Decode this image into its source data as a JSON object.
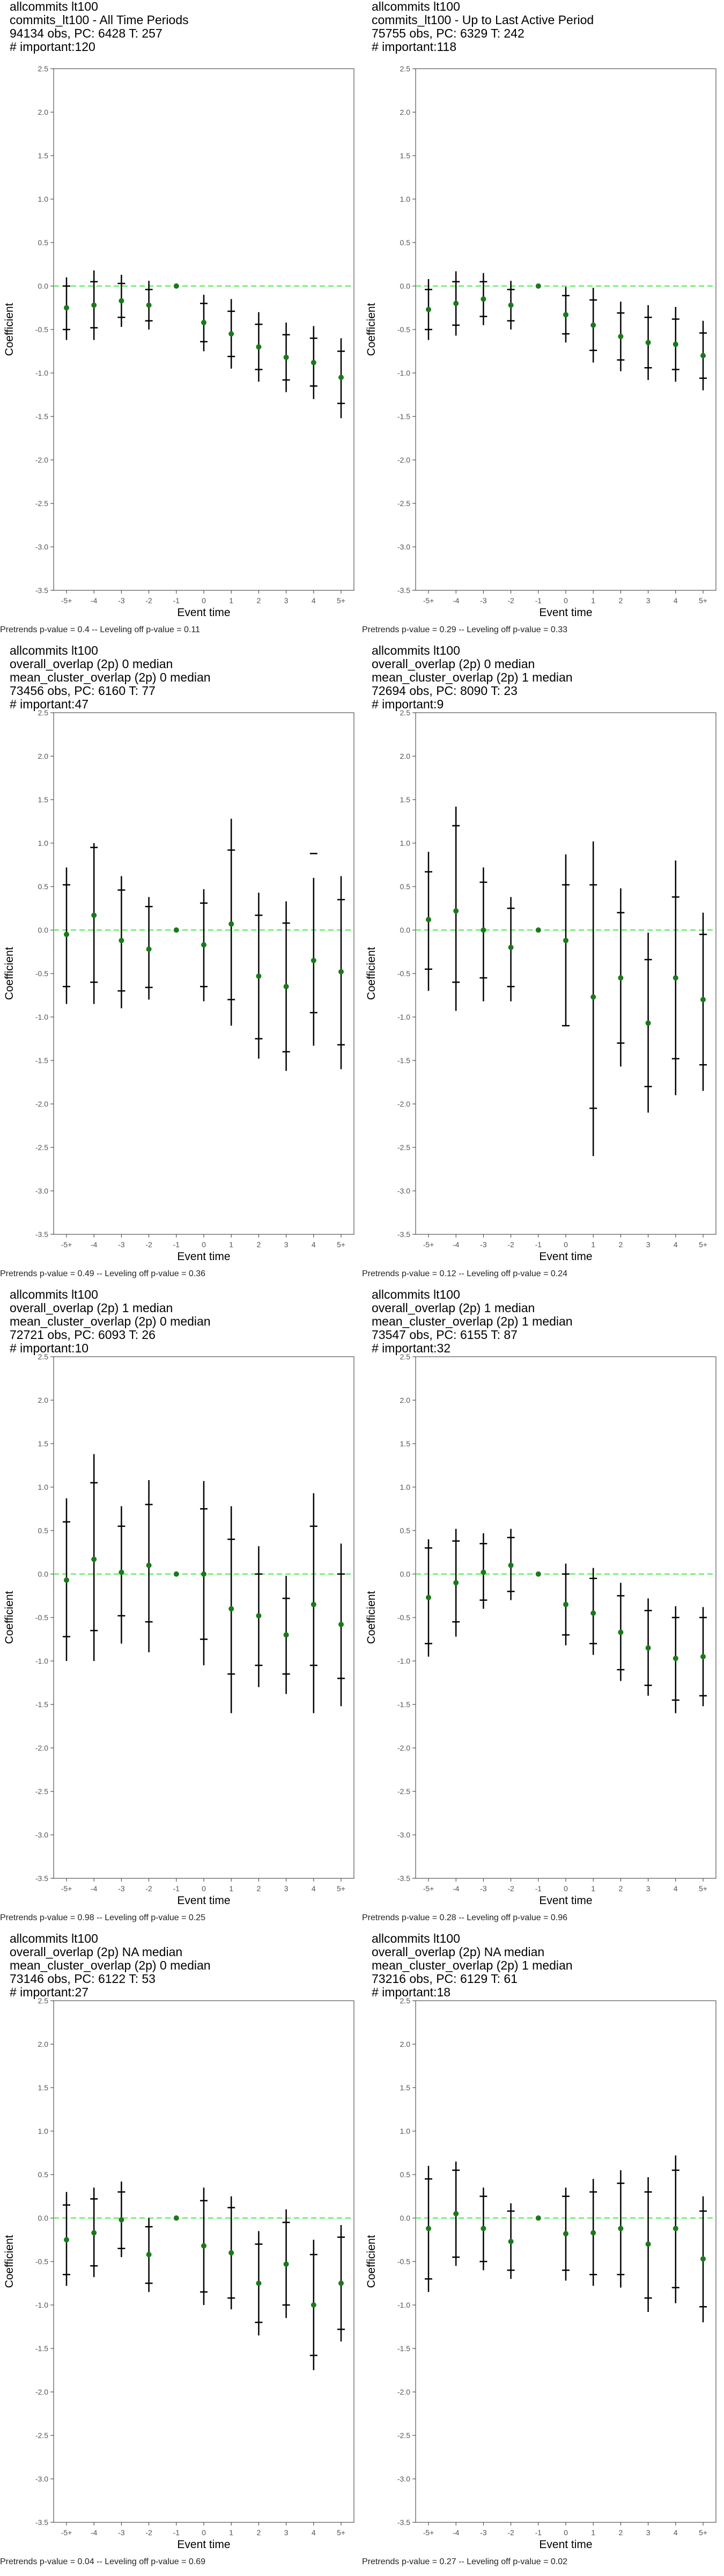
{
  "panel_header_common": "allcommits lt100",
  "axis": {
    "xlabel": "Event time",
    "ylabel": "Coefficient",
    "x_ticks": [
      "-5+",
      "-4",
      "-3",
      "-2",
      "-1",
      "0",
      "1",
      "2",
      "3",
      "4",
      "5+"
    ],
    "y_ticks": [
      "2.5",
      "2.0",
      "1.5",
      "1.0",
      "0.5",
      "0.0",
      "-0.5",
      "-1.0",
      "-1.5",
      "-2.0",
      "-2.5",
      "-3.0",
      "-3.5"
    ],
    "ylim": [
      -3.5,
      2.5
    ]
  },
  "colors": {
    "point": "#1a7a1a",
    "zero_line": "#66ee66",
    "error_bar": "#000000",
    "frame": "#333333"
  },
  "chart_data": [
    {
      "type": "scatter",
      "header": [
        "allcommits lt100",
        "commits_lt100 - All Time Periods",
        "94134 obs, PC: 6428 T: 257",
        "# important:120"
      ],
      "footer": "Pretrends p-value = 0.4 -- Leveling off p-value = 0.11",
      "x": [
        "-5+",
        "-4",
        "-3",
        "-2",
        "-1",
        "0",
        "1",
        "2",
        "3",
        "4",
        "5+"
      ],
      "y": [
        -0.25,
        -0.22,
        -0.17,
        -0.22,
        0.0,
        -0.42,
        -0.55,
        -0.7,
        -0.82,
        -0.88,
        -1.05
      ],
      "ci_low": [
        -0.62,
        -0.62,
        -0.47,
        -0.5,
        0.0,
        -0.75,
        -0.95,
        -1.1,
        -1.22,
        -1.3,
        -1.52
      ],
      "ci_high": [
        0.1,
        0.18,
        0.13,
        0.06,
        0.0,
        -0.1,
        -0.15,
        -0.3,
        -0.42,
        -0.46,
        -0.6
      ],
      "ci90_low": [
        -0.5,
        -0.48,
        -0.36,
        -0.4,
        0.0,
        -0.64,
        -0.81,
        -0.96,
        -1.08,
        -1.15,
        -1.35
      ],
      "ci90_high": [
        0.0,
        0.05,
        0.03,
        -0.04,
        0.0,
        -0.2,
        -0.29,
        -0.44,
        -0.56,
        -0.6,
        -0.75
      ],
      "ylim": [
        -3.5,
        2.5
      ]
    },
    {
      "type": "scatter",
      "header": [
        "allcommits lt100",
        "commits_lt100 - Up to Last Active Period",
        "75755 obs, PC: 6329 T: 242",
        "# important:118"
      ],
      "footer": "Pretrends p-value = 0.29 -- Leveling off p-value = 0.33",
      "x": [
        "-5+",
        "-4",
        "-3",
        "-2",
        "-1",
        "0",
        "1",
        "2",
        "3",
        "4",
        "5+"
      ],
      "y": [
        -0.27,
        -0.2,
        -0.15,
        -0.22,
        0.0,
        -0.33,
        -0.45,
        -0.58,
        -0.65,
        -0.67,
        -0.8
      ],
      "ci_low": [
        -0.62,
        -0.57,
        -0.45,
        -0.5,
        0.0,
        -0.65,
        -0.88,
        -0.98,
        -1.08,
        -1.1,
        -1.2
      ],
      "ci_high": [
        0.08,
        0.17,
        0.15,
        0.06,
        0.0,
        -0.01,
        -0.02,
        -0.18,
        -0.22,
        -0.24,
        -0.4
      ],
      "ci90_low": [
        -0.5,
        -0.45,
        -0.35,
        -0.4,
        0.0,
        -0.55,
        -0.74,
        -0.85,
        -0.94,
        -0.96,
        -1.06
      ],
      "ci90_high": [
        -0.04,
        0.05,
        0.05,
        -0.04,
        0.0,
        -0.11,
        -0.16,
        -0.31,
        -0.36,
        -0.38,
        -0.54
      ],
      "ylim": [
        -3.5,
        2.5
      ]
    },
    {
      "type": "scatter",
      "header": [
        "allcommits lt100",
        "overall_overlap (2p) 0 median",
        "mean_cluster_overlap (2p) 0 median",
        "73456 obs, PC: 6160 T: 77",
        "# important:47"
      ],
      "footer": "Pretrends p-value = 0.49 -- Leveling off p-value = 0.36",
      "x": [
        "-5+",
        "-4",
        "-3",
        "-2",
        "-1",
        "0",
        "1",
        "2",
        "3",
        "4",
        "5+"
      ],
      "y": [
        -0.05,
        0.17,
        -0.12,
        -0.22,
        0.0,
        -0.17,
        0.07,
        -0.53,
        -0.65,
        -0.35,
        -0.48
      ],
      "ci_low": [
        -0.85,
        -0.85,
        -0.9,
        -0.8,
        0.0,
        -0.82,
        -1.1,
        -1.48,
        -1.62,
        -1.33,
        -1.6
      ],
      "ci_high": [
        0.72,
        1.0,
        0.62,
        0.38,
        0.0,
        0.47,
        1.28,
        0.43,
        0.33,
        0.6,
        0.62
      ],
      "ci90_low": [
        -0.65,
        -0.6,
        -0.7,
        -0.66,
        0.0,
        -0.65,
        -0.8,
        -1.25,
        -1.4,
        -0.95,
        -1.32
      ],
      "ci90_high": [
        0.52,
        0.95,
        0.46,
        0.27,
        0.0,
        0.31,
        0.92,
        0.17,
        0.08,
        0.88,
        0.35
      ],
      "ylim": [
        -3.5,
        2.5
      ]
    },
    {
      "type": "scatter",
      "header": [
        "allcommits lt100",
        "overall_overlap (2p) 0 median",
        "mean_cluster_overlap (2p) 1 median",
        "72694 obs, PC: 8090 T: 23",
        "# important:9"
      ],
      "footer": "Pretrends p-value = 0.12 -- Leveling off p-value = 0.24",
      "x": [
        "-5+",
        "-4",
        "-3",
        "-2",
        "-1",
        "0",
        "1",
        "2",
        "3",
        "4",
        "5+"
      ],
      "y": [
        0.12,
        0.22,
        0.0,
        -0.2,
        0.0,
        -0.12,
        -0.77,
        -0.55,
        -1.07,
        -0.55,
        -0.8
      ],
      "ci_low": [
        -0.7,
        -0.93,
        -0.82,
        -0.82,
        0.0,
        -1.1,
        -2.6,
        -1.57,
        -2.1,
        -1.9,
        -1.85
      ],
      "ci_high": [
        0.9,
        1.42,
        0.72,
        0.38,
        0.0,
        0.87,
        1.02,
        0.48,
        -0.03,
        0.8,
        0.2
      ],
      "ci90_low": [
        -0.45,
        -0.6,
        -0.55,
        -0.65,
        0.0,
        -1.1,
        -2.05,
        -1.3,
        -1.8,
        -1.48,
        -1.55
      ],
      "ci90_high": [
        0.67,
        1.2,
        0.55,
        0.25,
        0.0,
        0.52,
        0.52,
        0.2,
        -0.34,
        0.38,
        -0.05
      ],
      "ylim": [
        -3.5,
        2.5
      ]
    },
    {
      "type": "scatter",
      "header": [
        "allcommits lt100",
        "overall_overlap (2p) 1 median",
        "mean_cluster_overlap (2p) 0 median",
        "72721 obs, PC: 6093 T: 26",
        "# important:10"
      ],
      "footer": "Pretrends p-value = 0.98 -- Leveling off p-value = 0.25",
      "x": [
        "-5+",
        "-4",
        "-3",
        "-2",
        "-1",
        "0",
        "1",
        "2",
        "3",
        "4",
        "5+"
      ],
      "y": [
        -0.07,
        0.17,
        0.02,
        0.1,
        0.0,
        0.0,
        -0.4,
        -0.48,
        -0.7,
        -0.35,
        -0.58
      ],
      "ci_low": [
        -1.0,
        -1.0,
        -0.8,
        -0.9,
        0.0,
        -1.05,
        -1.6,
        -1.3,
        -1.38,
        -1.6,
        -1.52
      ],
      "ci_high": [
        0.87,
        1.38,
        0.78,
        1.08,
        0.0,
        1.07,
        0.78,
        0.32,
        -0.02,
        0.93,
        0.35
      ],
      "ci90_low": [
        -0.72,
        -0.65,
        -0.48,
        -0.55,
        0.0,
        -0.75,
        -1.15,
        -1.05,
        -1.15,
        -1.05,
        -1.2
      ],
      "ci90_high": [
        0.6,
        1.05,
        0.55,
        0.8,
        0.0,
        0.75,
        0.4,
        0.0,
        -0.28,
        0.55,
        0.0
      ],
      "ylim": [
        -3.5,
        2.5
      ]
    },
    {
      "type": "scatter",
      "header": [
        "allcommits lt100",
        "overall_overlap (2p) 1 median",
        "mean_cluster_overlap (2p) 1 median",
        "73547 obs, PC: 6155 T: 87",
        "# important:32"
      ],
      "footer": "Pretrends p-value = 0.28 -- Leveling off p-value = 0.96",
      "x": [
        "-5+",
        "-4",
        "-3",
        "-2",
        "-1",
        "0",
        "1",
        "2",
        "3",
        "4",
        "5+"
      ],
      "y": [
        -0.27,
        -0.1,
        0.02,
        0.1,
        0.0,
        -0.35,
        -0.45,
        -0.67,
        -0.85,
        -0.97,
        -0.95
      ],
      "ci_low": [
        -0.95,
        -0.72,
        -0.4,
        -0.3,
        0.0,
        -0.82,
        -0.93,
        -1.23,
        -1.4,
        -1.6,
        -1.52
      ],
      "ci_high": [
        0.4,
        0.52,
        0.47,
        0.52,
        0.0,
        0.12,
        0.07,
        -0.1,
        -0.28,
        -0.37,
        -0.38
      ],
      "ci90_low": [
        -0.8,
        -0.55,
        -0.3,
        -0.2,
        0.0,
        -0.7,
        -0.8,
        -1.1,
        -1.28,
        -1.45,
        -1.4
      ],
      "ci90_high": [
        0.3,
        0.38,
        0.35,
        0.42,
        0.0,
        0.0,
        -0.05,
        -0.25,
        -0.42,
        -0.5,
        -0.5
      ],
      "ylim": [
        -3.5,
        2.5
      ]
    },
    {
      "type": "scatter",
      "header": [
        "allcommits lt100",
        "overall_overlap (2p) NA median",
        "mean_cluster_overlap (2p) 0 median",
        "73146 obs, PC: 6122 T: 53",
        "# important:27"
      ],
      "footer": "Pretrends p-value = 0.04 -- Leveling off p-value = 0.69",
      "x": [
        "-5+",
        "-4",
        "-3",
        "-2",
        "-1",
        "0",
        "1",
        "2",
        "3",
        "4",
        "5+"
      ],
      "y": [
        -0.25,
        -0.17,
        -0.02,
        -0.42,
        0.0,
        -0.32,
        -0.4,
        -0.75,
        -0.53,
        -1.0,
        -0.75
      ],
      "ci_low": [
        -0.78,
        -0.68,
        -0.45,
        -0.85,
        0.0,
        -1.0,
        -1.05,
        -1.35,
        -1.15,
        -1.75,
        -1.42
      ],
      "ci_high": [
        0.3,
        0.35,
        0.42,
        0.0,
        0.0,
        0.35,
        0.25,
        -0.15,
        0.1,
        -0.25,
        -0.08
      ],
      "ci90_low": [
        -0.65,
        -0.55,
        -0.35,
        -0.75,
        0.0,
        -0.85,
        -0.92,
        -1.2,
        -1.0,
        -1.58,
        -1.28
      ],
      "ci90_high": [
        0.15,
        0.22,
        0.3,
        -0.1,
        0.0,
        0.2,
        0.12,
        -0.3,
        -0.05,
        -0.42,
        -0.22
      ],
      "ylim": [
        -3.5,
        2.5
      ]
    },
    {
      "type": "scatter",
      "header": [
        "allcommits lt100",
        "overall_overlap (2p) NA median",
        "mean_cluster_overlap (2p) 1 median",
        "73216 obs, PC: 6129 T: 61",
        "# important:18"
      ],
      "footer": "Pretrends p-value = 0.27 -- Leveling off p-value = 0.02",
      "x": [
        "-5+",
        "-4",
        "-3",
        "-2",
        "-1",
        "0",
        "1",
        "2",
        "3",
        "4",
        "5+"
      ],
      "y": [
        -0.12,
        0.05,
        -0.12,
        -0.27,
        0.0,
        -0.18,
        -0.17,
        -0.12,
        -0.3,
        -0.12,
        -0.47
      ],
      "ci_low": [
        -0.85,
        -0.55,
        -0.6,
        -0.7,
        0.0,
        -0.72,
        -0.78,
        -0.8,
        -1.08,
        -0.98,
        -1.2
      ],
      "ci_high": [
        0.6,
        0.65,
        0.35,
        0.17,
        0.0,
        0.35,
        0.45,
        0.55,
        0.47,
        0.72,
        0.25
      ],
      "ci90_low": [
        -0.7,
        -0.45,
        -0.5,
        -0.6,
        0.0,
        -0.6,
        -0.65,
        -0.65,
        -0.92,
        -0.8,
        -1.02
      ],
      "ci90_high": [
        0.45,
        0.55,
        0.25,
        0.08,
        0.0,
        0.25,
        0.3,
        0.4,
        0.3,
        0.55,
        0.08
      ],
      "ylim": [
        -3.5,
        2.5
      ]
    }
  ]
}
